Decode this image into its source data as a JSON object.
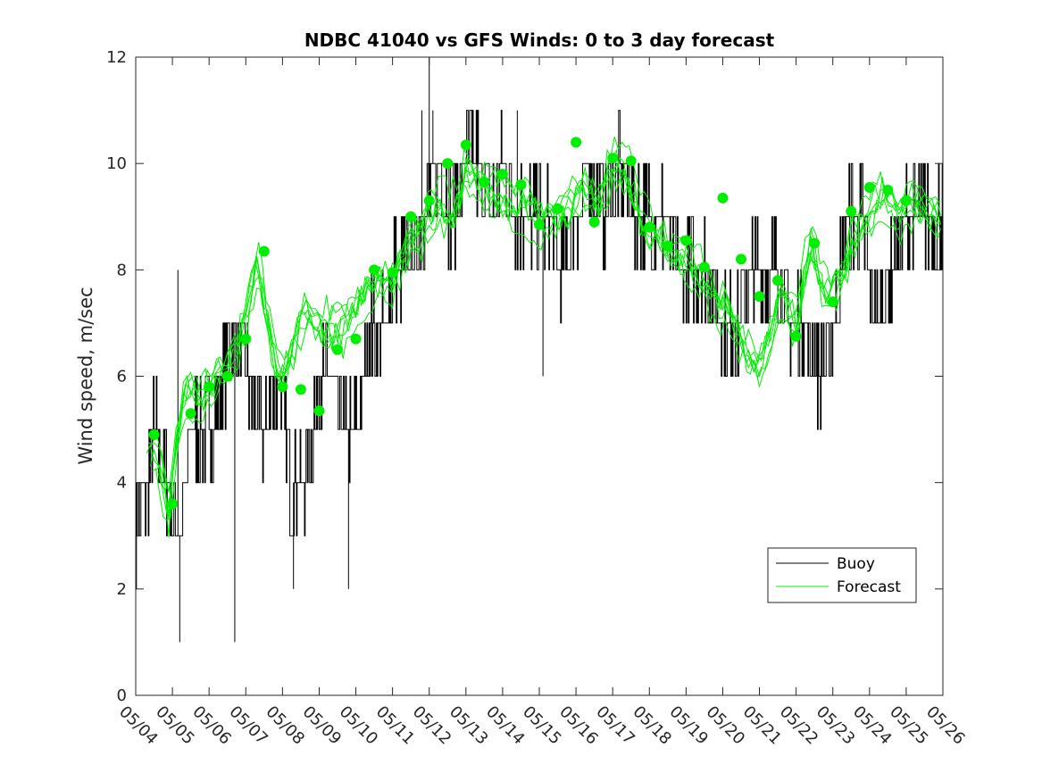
{
  "chart_data": {
    "type": "line",
    "title": "NDBC 41040 vs GFS Winds: 0 to 3 day forecast",
    "xlabel": "",
    "ylabel": "Wind speed, m/sec",
    "ylim": [
      0,
      12
    ],
    "yticks": [
      "0",
      "2",
      "4",
      "6",
      "8",
      "10",
      "12"
    ],
    "xlim": [
      0,
      22
    ],
    "xticks": [
      "05/04",
      "05/05",
      "05/06",
      "05/07",
      "05/08",
      "05/09",
      "05/10",
      "05/11",
      "05/12",
      "05/13",
      "05/14",
      "05/15",
      "05/16",
      "05/17",
      "05/18",
      "05/19",
      "05/20",
      "05/21",
      "05/22",
      "05/23",
      "05/24",
      "05/25",
      "05/26"
    ],
    "grid": false,
    "legend": {
      "position": "lower-right",
      "entries": [
        "Buoy",
        "Forecast"
      ]
    },
    "colors": {
      "buoy": "#000000",
      "forecast": "#00ee00",
      "markers": "#00ee00"
    },
    "series": [
      {
        "name": "Buoy",
        "x": [
          0,
          0.3,
          0.5,
          0.9,
          1.2,
          1.5,
          1.8,
          2.1,
          2.4,
          2.7,
          3.0,
          3.5,
          3.9,
          4.2,
          4.6,
          5.0,
          5.3,
          5.7,
          6.0,
          6.4,
          6.8,
          7.0,
          7.4,
          7.8,
          8.2,
          8.6,
          9.0,
          9.3,
          9.7,
          10.0,
          10.4,
          10.8,
          11.2,
          11.6,
          12.0,
          12.4,
          12.8,
          13.2,
          13.6,
          14.0,
          14.4,
          14.8,
          15.2,
          15.6,
          16.0,
          16.4,
          16.8,
          17.0,
          17.4,
          17.8,
          18.2,
          18.6,
          19.0,
          19.4,
          19.8,
          20.2,
          20.6,
          21.0,
          21.4,
          22.0
        ],
        "y": [
          3,
          4,
          5,
          4,
          3,
          5,
          5,
          5,
          6,
          7,
          6,
          5,
          6,
          4,
          4,
          6,
          6,
          5,
          5,
          7,
          7,
          8,
          8,
          9,
          10,
          9,
          10,
          10,
          9,
          10,
          9,
          9,
          9,
          8,
          9,
          10,
          9,
          10,
          9,
          9,
          9,
          8,
          8,
          8,
          7,
          7,
          8,
          8,
          8,
          7,
          7,
          6,
          7,
          9,
          9,
          7,
          8,
          9,
          9,
          9
        ],
        "spikes": [
          {
            "x": 1.15,
            "y": 8
          },
          {
            "x": 1.2,
            "y": 1
          },
          {
            "x": 2.7,
            "y": 1
          },
          {
            "x": 4.3,
            "y": 2
          },
          {
            "x": 5.8,
            "y": 2
          },
          {
            "x": 7.8,
            "y": 11
          },
          {
            "x": 8.0,
            "y": 12
          },
          {
            "x": 8.1,
            "y": 11
          },
          {
            "x": 10.4,
            "y": 11
          },
          {
            "x": 11.1,
            "y": 6
          }
        ]
      },
      {
        "name": "Forecast",
        "markers": [
          {
            "x": 0.5,
            "y": 4.9
          },
          {
            "x": 1.0,
            "y": 3.6
          },
          {
            "x": 1.5,
            "y": 5.3
          },
          {
            "x": 2.0,
            "y": 5.8
          },
          {
            "x": 2.5,
            "y": 6.0
          },
          {
            "x": 3.0,
            "y": 6.7
          },
          {
            "x": 3.5,
            "y": 8.35
          },
          {
            "x": 4.0,
            "y": 5.8
          },
          {
            "x": 4.5,
            "y": 5.75
          },
          {
            "x": 5.0,
            "y": 5.35
          },
          {
            "x": 5.5,
            "y": 6.5
          },
          {
            "x": 6.0,
            "y": 6.7
          },
          {
            "x": 6.5,
            "y": 8.0
          },
          {
            "x": 7.0,
            "y": 7.95
          },
          {
            "x": 7.5,
            "y": 9.0
          },
          {
            "x": 8.0,
            "y": 9.3
          },
          {
            "x": 8.5,
            "y": 10.0
          },
          {
            "x": 9.0,
            "y": 10.35
          },
          {
            "x": 9.5,
            "y": 9.65
          },
          {
            "x": 10.0,
            "y": 9.8
          },
          {
            "x": 10.5,
            "y": 9.6
          },
          {
            "x": 11.0,
            "y": 8.85
          },
          {
            "x": 11.5,
            "y": 9.15
          },
          {
            "x": 12.0,
            "y": 10.4
          },
          {
            "x": 12.5,
            "y": 8.9
          },
          {
            "x": 13.0,
            "y": 10.1
          },
          {
            "x": 13.5,
            "y": 10.05
          },
          {
            "x": 14.0,
            "y": 8.8
          },
          {
            "x": 14.5,
            "y": 8.45
          },
          {
            "x": 15.0,
            "y": 8.55
          },
          {
            "x": 15.5,
            "y": 8.05
          },
          {
            "x": 16.0,
            "y": 9.35
          },
          {
            "x": 16.5,
            "y": 8.2
          },
          {
            "x": 17.0,
            "y": 7.5
          },
          {
            "x": 17.5,
            "y": 7.8
          },
          {
            "x": 18.0,
            "y": 6.75
          },
          {
            "x": 18.5,
            "y": 8.5
          },
          {
            "x": 19.0,
            "y": 7.4
          },
          {
            "x": 19.5,
            "y": 9.1
          },
          {
            "x": 20.0,
            "y": 9.55
          },
          {
            "x": 20.5,
            "y": 9.5
          },
          {
            "x": 21.0,
            "y": 9.3
          }
        ],
        "x": [
          0.3,
          0.6,
          0.9,
          1.1,
          1.4,
          1.8,
          2.2,
          2.6,
          3.0,
          3.3,
          3.6,
          3.9,
          4.2,
          4.6,
          5.0,
          5.4,
          5.8,
          6.2,
          6.6,
          7.0,
          7.4,
          7.8,
          8.2,
          8.6,
          9.0,
          9.4,
          9.8,
          10.2,
          10.6,
          11.0,
          11.4,
          11.8,
          12.2,
          12.6,
          13.0,
          13.4,
          13.8,
          14.2,
          14.6,
          15.0,
          15.4,
          15.8,
          16.2,
          16.6,
          17.0,
          17.3,
          17.6,
          18.0,
          18.4,
          18.8,
          19.2,
          19.6,
          20.0,
          20.4,
          20.8,
          21.2,
          21.6,
          22.0
        ],
        "y": [
          4.8,
          4.5,
          3.3,
          4.8,
          5.8,
          5.6,
          6.0,
          6.3,
          7.0,
          8.2,
          7.0,
          6.0,
          6.3,
          7.2,
          7.0,
          6.8,
          7.0,
          7.5,
          7.8,
          7.7,
          8.5,
          8.8,
          9.2,
          9.0,
          9.8,
          9.6,
          9.4,
          9.2,
          9.2,
          9.0,
          9.0,
          9.2,
          9.6,
          9.2,
          10.0,
          9.8,
          8.9,
          8.6,
          8.3,
          8.2,
          7.9,
          7.5,
          7.2,
          6.5,
          6.2,
          6.8,
          7.5,
          7.0,
          8.5,
          7.5,
          7.8,
          8.6,
          9.0,
          9.4,
          9.0,
          9.3,
          9.2,
          8.8
        ]
      }
    ]
  }
}
